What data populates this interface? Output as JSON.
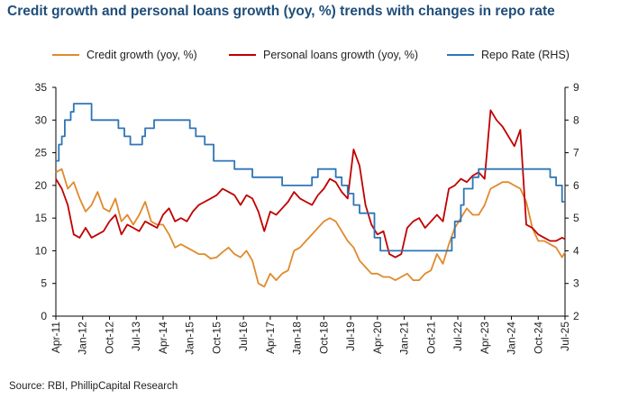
{
  "title": "Credit growth and personal loans growth (yoy, %) trends with changes in repo rate",
  "source": "Source: RBI, PhillipCapital Research",
  "chart_data": {
    "type": "line",
    "x_tick_labels": [
      "Apr-11",
      "Jan-12",
      "Oct-12",
      "Jul-13",
      "Apr-14",
      "Jan-15",
      "Oct-15",
      "Jul-16",
      "Apr-17",
      "Jan-18",
      "Oct-18",
      "Jul-19",
      "Apr-20",
      "Jan-21",
      "Oct-21",
      "Jul-22",
      "Apr-23",
      "Jan-24",
      "Oct-24",
      "Jul-25"
    ],
    "ylim": [
      0,
      35
    ],
    "y_ticks": [
      0,
      5,
      10,
      15,
      20,
      25,
      30,
      35
    ],
    "y2lim": [
      2,
      9
    ],
    "y2_ticks": [
      2,
      3,
      4,
      5,
      6,
      7,
      8,
      9
    ],
    "grid": false,
    "legend_position": "top",
    "series": [
      {
        "name": "Credit growth (yoy, %)",
        "color": "#e08a2c",
        "axis": "left",
        "points": [
          [
            "Apr-11",
            22.0
          ],
          [
            "Jun-11",
            22.5
          ],
          [
            "Aug-11",
            19.5
          ],
          [
            "Oct-11",
            20.5
          ],
          [
            "Dec-11",
            18.0
          ],
          [
            "Feb-12",
            16.0
          ],
          [
            "Apr-12",
            17.0
          ],
          [
            "Jun-12",
            19.0
          ],
          [
            "Aug-12",
            16.5
          ],
          [
            "Oct-12",
            16.0
          ],
          [
            "Dec-12",
            18.0
          ],
          [
            "Feb-13",
            14.5
          ],
          [
            "Apr-13",
            15.5
          ],
          [
            "Jun-13",
            14.0
          ],
          [
            "Aug-13",
            15.5
          ],
          [
            "Oct-13",
            17.5
          ],
          [
            "Dec-13",
            14.5
          ],
          [
            "Feb-14",
            14.0
          ],
          [
            "Apr-14",
            14.0
          ],
          [
            "Jun-14",
            12.5
          ],
          [
            "Aug-14",
            10.5
          ],
          [
            "Oct-14",
            11.0
          ],
          [
            "Dec-14",
            10.5
          ],
          [
            "Feb-15",
            10.0
          ],
          [
            "Apr-15",
            9.5
          ],
          [
            "Jun-15",
            9.5
          ],
          [
            "Aug-15",
            8.8
          ],
          [
            "Oct-15",
            9.0
          ],
          [
            "Dec-15",
            9.8
          ],
          [
            "Feb-16",
            10.5
          ],
          [
            "Apr-16",
            9.5
          ],
          [
            "Jun-16",
            9.0
          ],
          [
            "Aug-16",
            10.0
          ],
          [
            "Oct-16",
            8.5
          ],
          [
            "Dec-16",
            5.0
          ],
          [
            "Feb-17",
            4.5
          ],
          [
            "Apr-17",
            6.5
          ],
          [
            "Jun-17",
            5.5
          ],
          [
            "Aug-17",
            6.5
          ],
          [
            "Oct-17",
            7.0
          ],
          [
            "Dec-17",
            10.0
          ],
          [
            "Feb-18",
            10.5
          ],
          [
            "Apr-18",
            11.5
          ],
          [
            "Jun-18",
            12.5
          ],
          [
            "Aug-18",
            13.5
          ],
          [
            "Oct-18",
            14.5
          ],
          [
            "Dec-18",
            15.0
          ],
          [
            "Feb-19",
            14.5
          ],
          [
            "Apr-19",
            13.0
          ],
          [
            "Jun-19",
            11.5
          ],
          [
            "Aug-19",
            10.5
          ],
          [
            "Oct-19",
            8.5
          ],
          [
            "Dec-19",
            7.5
          ],
          [
            "Feb-20",
            6.5
          ],
          [
            "Apr-20",
            6.5
          ],
          [
            "Jun-20",
            6.0
          ],
          [
            "Aug-20",
            6.0
          ],
          [
            "Oct-20",
            5.5
          ],
          [
            "Dec-20",
            6.0
          ],
          [
            "Feb-21",
            6.5
          ],
          [
            "Apr-21",
            5.5
          ],
          [
            "Jun-21",
            5.5
          ],
          [
            "Aug-21",
            6.5
          ],
          [
            "Oct-21",
            7.0
          ],
          [
            "Dec-21",
            9.5
          ],
          [
            "Feb-22",
            8.0
          ],
          [
            "Apr-22",
            11.0
          ],
          [
            "Jun-22",
            13.5
          ],
          [
            "Aug-22",
            15.0
          ],
          [
            "Oct-22",
            16.5
          ],
          [
            "Dec-22",
            15.5
          ],
          [
            "Feb-23",
            15.5
          ],
          [
            "Apr-23",
            17.0
          ],
          [
            "Jun-23",
            19.5
          ],
          [
            "Aug-23",
            20.0
          ],
          [
            "Oct-23",
            20.5
          ],
          [
            "Dec-23",
            20.5
          ],
          [
            "Feb-24",
            20.0
          ],
          [
            "Apr-24",
            19.5
          ],
          [
            "Jun-24",
            17.5
          ],
          [
            "Aug-24",
            13.5
          ],
          [
            "Oct-24",
            11.5
          ],
          [
            "Dec-24",
            11.5
          ],
          [
            "Feb-25",
            11.0
          ],
          [
            "Apr-25",
            10.5
          ],
          [
            "Jun-25",
            9.0
          ],
          [
            "Jul-25",
            9.8
          ]
        ]
      },
      {
        "name": "Personal loans growth (yoy, %)",
        "color": "#c00000",
        "axis": "left",
        "points": [
          [
            "Apr-11",
            21.0
          ],
          [
            "Jun-11",
            19.5
          ],
          [
            "Aug-11",
            17.0
          ],
          [
            "Oct-11",
            12.5
          ],
          [
            "Dec-11",
            12.0
          ],
          [
            "Feb-12",
            13.5
          ],
          [
            "Apr-12",
            12.0
          ],
          [
            "Jun-12",
            12.5
          ],
          [
            "Aug-12",
            13.0
          ],
          [
            "Oct-12",
            14.5
          ],
          [
            "Dec-12",
            15.5
          ],
          [
            "Feb-13",
            12.5
          ],
          [
            "Apr-13",
            14.0
          ],
          [
            "Jun-13",
            13.5
          ],
          [
            "Aug-13",
            13.0
          ],
          [
            "Oct-13",
            14.5
          ],
          [
            "Dec-13",
            14.0
          ],
          [
            "Feb-14",
            13.5
          ],
          [
            "Apr-14",
            15.5
          ],
          [
            "Jun-14",
            16.5
          ],
          [
            "Aug-14",
            14.5
          ],
          [
            "Oct-14",
            15.0
          ],
          [
            "Dec-14",
            14.5
          ],
          [
            "Feb-15",
            16.0
          ],
          [
            "Apr-15",
            17.0
          ],
          [
            "Jun-15",
            17.5
          ],
          [
            "Aug-15",
            18.0
          ],
          [
            "Oct-15",
            18.5
          ],
          [
            "Dec-15",
            19.5
          ],
          [
            "Feb-16",
            19.0
          ],
          [
            "Apr-16",
            18.5
          ],
          [
            "Jun-16",
            17.0
          ],
          [
            "Aug-16",
            18.5
          ],
          [
            "Oct-16",
            18.0
          ],
          [
            "Dec-16",
            16.0
          ],
          [
            "Feb-17",
            13.0
          ],
          [
            "Apr-17",
            16.0
          ],
          [
            "Jun-17",
            15.5
          ],
          [
            "Aug-17",
            16.5
          ],
          [
            "Oct-17",
            17.5
          ],
          [
            "Dec-17",
            19.0
          ],
          [
            "Feb-18",
            18.0
          ],
          [
            "Apr-18",
            17.5
          ],
          [
            "Jun-18",
            17.0
          ],
          [
            "Aug-18",
            18.5
          ],
          [
            "Oct-18",
            19.5
          ],
          [
            "Dec-18",
            21.0
          ],
          [
            "Feb-19",
            20.5
          ],
          [
            "Apr-19",
            19.0
          ],
          [
            "Jun-19",
            18.0
          ],
          [
            "Aug-19",
            25.5
          ],
          [
            "Oct-19",
            23.0
          ],
          [
            "Dec-19",
            17.0
          ],
          [
            "Feb-20",
            14.0
          ],
          [
            "Apr-20",
            12.5
          ],
          [
            "Jun-20",
            13.0
          ],
          [
            "Aug-20",
            9.5
          ],
          [
            "Oct-20",
            9.0
          ],
          [
            "Dec-20",
            9.5
          ],
          [
            "Feb-21",
            13.5
          ],
          [
            "Apr-21",
            14.5
          ],
          [
            "Jun-21",
            15.0
          ],
          [
            "Aug-21",
            13.5
          ],
          [
            "Oct-21",
            14.5
          ],
          [
            "Dec-21",
            15.5
          ],
          [
            "Feb-22",
            14.5
          ],
          [
            "Apr-22",
            19.5
          ],
          [
            "Jun-22",
            20.0
          ],
          [
            "Aug-22",
            21.0
          ],
          [
            "Oct-22",
            20.5
          ],
          [
            "Dec-22",
            21.5
          ],
          [
            "Feb-23",
            22.0
          ],
          [
            "Apr-23",
            21.0
          ],
          [
            "Jun-23",
            31.5
          ],
          [
            "Aug-23",
            30.0
          ],
          [
            "Oct-23",
            29.0
          ],
          [
            "Dec-23",
            27.5
          ],
          [
            "Feb-24",
            26.0
          ],
          [
            "Apr-24",
            28.5
          ],
          [
            "Jun-24",
            14.0
          ],
          [
            "Aug-24",
            13.5
          ],
          [
            "Oct-24",
            12.5
          ],
          [
            "Dec-24",
            12.0
          ],
          [
            "Feb-25",
            11.5
          ],
          [
            "Apr-25",
            11.5
          ],
          [
            "Jun-25",
            12.0
          ],
          [
            "Jul-25",
            11.8
          ]
        ]
      },
      {
        "name": "Repo Rate (RHS)",
        "color": "#2e75b6",
        "axis": "right",
        "points": [
          [
            "Apr-11",
            6.75
          ],
          [
            "May-11",
            7.25
          ],
          [
            "Jun-11",
            7.5
          ],
          [
            "Jul-11",
            8.0
          ],
          [
            "Sep-11",
            8.25
          ],
          [
            "Oct-11",
            8.5
          ],
          [
            "Apr-12",
            8.0
          ],
          [
            "Jan-13",
            7.75
          ],
          [
            "Mar-13",
            7.5
          ],
          [
            "May-13",
            7.25
          ],
          [
            "Sep-13",
            7.5
          ],
          [
            "Oct-13",
            7.75
          ],
          [
            "Jan-14",
            8.0
          ],
          [
            "Jan-15",
            7.75
          ],
          [
            "Mar-15",
            7.5
          ],
          [
            "Jun-15",
            7.25
          ],
          [
            "Sep-15",
            6.75
          ],
          [
            "Apr-16",
            6.5
          ],
          [
            "Oct-16",
            6.25
          ],
          [
            "Aug-17",
            6.0
          ],
          [
            "Jun-18",
            6.25
          ],
          [
            "Aug-18",
            6.5
          ],
          [
            "Feb-19",
            6.25
          ],
          [
            "Apr-19",
            6.0
          ],
          [
            "Jun-19",
            5.75
          ],
          [
            "Aug-19",
            5.4
          ],
          [
            "Oct-19",
            5.15
          ],
          [
            "Mar-20",
            4.4
          ],
          [
            "May-20",
            4.0
          ],
          [
            "Apr-22",
            4.0
          ],
          [
            "May-22",
            4.4
          ],
          [
            "Jun-22",
            4.9
          ],
          [
            "Aug-22",
            5.4
          ],
          [
            "Sep-22",
            5.9
          ],
          [
            "Dec-22",
            6.25
          ],
          [
            "Feb-23",
            6.5
          ],
          [
            "Feb-25",
            6.25
          ],
          [
            "Apr-25",
            6.0
          ],
          [
            "Jun-25",
            5.5
          ],
          [
            "Jul-25",
            5.5
          ]
        ]
      }
    ]
  }
}
